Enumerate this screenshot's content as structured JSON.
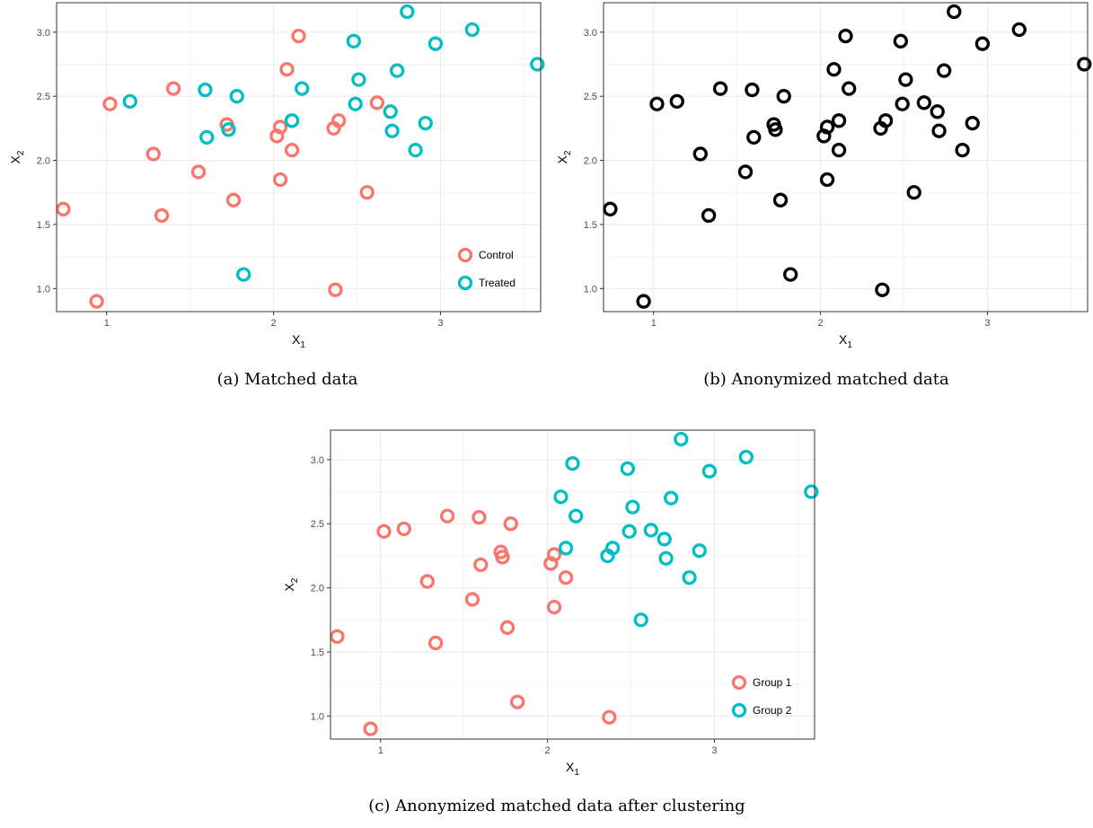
{
  "colors": {
    "control": "#F8766D",
    "treated": "#00BFC4",
    "anon": "#000000",
    "grid": "#ebebeb"
  },
  "chart_data": [
    {
      "id": "a",
      "type": "scatter",
      "caption": "(a) Matched data",
      "xlabel": "X",
      "xlabel_sub": "1",
      "ylabel": "X",
      "ylabel_sub": "2",
      "xlim": [
        0.7,
        3.6
      ],
      "ylim": [
        0.82,
        3.23
      ],
      "xticks": [
        1,
        2,
        3
      ],
      "yticks": [
        "1.0",
        "1.5",
        "2.0",
        "2.5",
        "3.0"
      ],
      "legend": "bottom-right",
      "series": [
        {
          "name": "Control",
          "color": "#F8766D",
          "points": [
            [
              0.74,
              1.62
            ],
            [
              0.94,
              0.9
            ],
            [
              1.02,
              2.44
            ],
            [
              1.28,
              2.05
            ],
            [
              1.33,
              1.57
            ],
            [
              1.4,
              2.56
            ],
            [
              1.55,
              1.91
            ],
            [
              1.72,
              2.28
            ],
            [
              1.76,
              1.69
            ],
            [
              2.02,
              2.19
            ],
            [
              2.04,
              2.26
            ],
            [
              2.04,
              1.85
            ],
            [
              2.08,
              2.71
            ],
            [
              2.11,
              2.08
            ],
            [
              2.15,
              2.97
            ],
            [
              2.36,
              2.25
            ],
            [
              2.37,
              0.99
            ],
            [
              2.39,
              2.31
            ],
            [
              2.56,
              1.75
            ],
            [
              2.62,
              2.45
            ]
          ]
        },
        {
          "name": "Treated",
          "color": "#00BFC4",
          "points": [
            [
              1.14,
              2.46
            ],
            [
              1.59,
              2.55
            ],
            [
              1.6,
              2.18
            ],
            [
              1.73,
              2.24
            ],
            [
              1.78,
              2.5
            ],
            [
              1.82,
              1.11
            ],
            [
              2.11,
              2.31
            ],
            [
              2.17,
              2.56
            ],
            [
              2.48,
              2.93
            ],
            [
              2.49,
              2.44
            ],
            [
              2.51,
              2.63
            ],
            [
              2.7,
              2.38
            ],
            [
              2.71,
              2.23
            ],
            [
              2.74,
              2.7
            ],
            [
              2.8,
              3.16
            ],
            [
              2.85,
              2.08
            ],
            [
              2.91,
              2.29
            ],
            [
              2.97,
              2.91
            ],
            [
              3.19,
              3.02
            ],
            [
              3.58,
              2.75
            ]
          ]
        }
      ]
    },
    {
      "id": "b",
      "type": "scatter",
      "caption": "(b) Anonymized matched data",
      "xlabel": "X",
      "xlabel_sub": "1",
      "ylabel": "X",
      "ylabel_sub": "2",
      "xlim": [
        0.7,
        3.6
      ],
      "ylim": [
        0.82,
        3.23
      ],
      "xticks": [
        1,
        2,
        3
      ],
      "yticks": [
        "1.0",
        "1.5",
        "2.0",
        "2.5",
        "3.0"
      ],
      "series": [
        {
          "color": "#000000",
          "points": [
            [
              0.74,
              1.62
            ],
            [
              0.94,
              0.9
            ],
            [
              1.02,
              2.44
            ],
            [
              1.28,
              2.05
            ],
            [
              1.33,
              1.57
            ],
            [
              1.4,
              2.56
            ],
            [
              1.55,
              1.91
            ],
            [
              1.72,
              2.28
            ],
            [
              1.76,
              1.69
            ],
            [
              2.02,
              2.19
            ],
            [
              2.04,
              2.26
            ],
            [
              2.04,
              1.85
            ],
            [
              2.08,
              2.71
            ],
            [
              2.11,
              2.08
            ],
            [
              2.15,
              2.97
            ],
            [
              2.36,
              2.25
            ],
            [
              2.37,
              0.99
            ],
            [
              2.39,
              2.31
            ],
            [
              2.56,
              1.75
            ],
            [
              2.62,
              2.45
            ],
            [
              1.14,
              2.46
            ],
            [
              1.59,
              2.55
            ],
            [
              1.6,
              2.18
            ],
            [
              1.73,
              2.24
            ],
            [
              1.78,
              2.5
            ],
            [
              1.82,
              1.11
            ],
            [
              2.11,
              2.31
            ],
            [
              2.17,
              2.56
            ],
            [
              2.48,
              2.93
            ],
            [
              2.49,
              2.44
            ],
            [
              2.51,
              2.63
            ],
            [
              2.7,
              2.38
            ],
            [
              2.71,
              2.23
            ],
            [
              2.74,
              2.7
            ],
            [
              2.8,
              3.16
            ],
            [
              2.85,
              2.08
            ],
            [
              2.91,
              2.29
            ],
            [
              2.97,
              2.91
            ],
            [
              3.19,
              3.02
            ],
            [
              3.58,
              2.75
            ]
          ]
        }
      ]
    },
    {
      "id": "c",
      "type": "scatter",
      "caption": "(c) Anonymized matched data after clustering",
      "xlabel": "X",
      "xlabel_sub": "1",
      "ylabel": "X",
      "ylabel_sub": "2",
      "xlim": [
        0.7,
        3.6
      ],
      "ylim": [
        0.82,
        3.23
      ],
      "xticks": [
        1,
        2,
        3
      ],
      "yticks": [
        "1.0",
        "1.5",
        "2.0",
        "2.5",
        "3.0"
      ],
      "legend": "bottom-right",
      "series": [
        {
          "name": "Group 1",
          "color": "#F8766D",
          "points": [
            [
              0.74,
              1.62
            ],
            [
              0.94,
              0.9
            ],
            [
              1.02,
              2.44
            ],
            [
              1.14,
              2.46
            ],
            [
              1.28,
              2.05
            ],
            [
              1.33,
              1.57
            ],
            [
              1.4,
              2.56
            ],
            [
              1.55,
              1.91
            ],
            [
              1.59,
              2.55
            ],
            [
              1.6,
              2.18
            ],
            [
              1.72,
              2.28
            ],
            [
              1.73,
              2.24
            ],
            [
              1.76,
              1.69
            ],
            [
              1.78,
              2.5
            ],
            [
              1.82,
              1.11
            ],
            [
              2.02,
              2.19
            ],
            [
              2.04,
              2.26
            ],
            [
              2.04,
              1.85
            ],
            [
              2.11,
              2.08
            ],
            [
              2.37,
              0.99
            ]
          ]
        },
        {
          "name": "Group 2",
          "color": "#00BFC4",
          "points": [
            [
              2.08,
              2.71
            ],
            [
              2.11,
              2.31
            ],
            [
              2.15,
              2.97
            ],
            [
              2.17,
              2.56
            ],
            [
              2.36,
              2.25
            ],
            [
              2.39,
              2.31
            ],
            [
              2.48,
              2.93
            ],
            [
              2.49,
              2.44
            ],
            [
              2.51,
              2.63
            ],
            [
              2.56,
              1.75
            ],
            [
              2.62,
              2.45
            ],
            [
              2.7,
              2.38
            ],
            [
              2.71,
              2.23
            ],
            [
              2.74,
              2.7
            ],
            [
              2.8,
              3.16
            ],
            [
              2.85,
              2.08
            ],
            [
              2.91,
              2.29
            ],
            [
              2.97,
              2.91
            ],
            [
              3.19,
              3.02
            ],
            [
              3.58,
              2.75
            ]
          ]
        }
      ]
    }
  ]
}
